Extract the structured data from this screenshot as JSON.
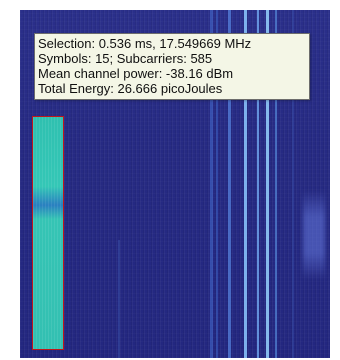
{
  "tooltip": {
    "selection": "Selection: 0.536 ms, 17.549669 MHz",
    "symbols": "Symbols: 15; Subcarriers: 585",
    "power": "Mean channel power: -38.16 dBm",
    "energy": "Total Energy: 26.666 picoJoules"
  },
  "colors": {
    "background": "#262a83",
    "selection_border": "#c0161a",
    "selection_fill": "#33c0b2",
    "tooltip_bg": "#f4f6e6"
  }
}
